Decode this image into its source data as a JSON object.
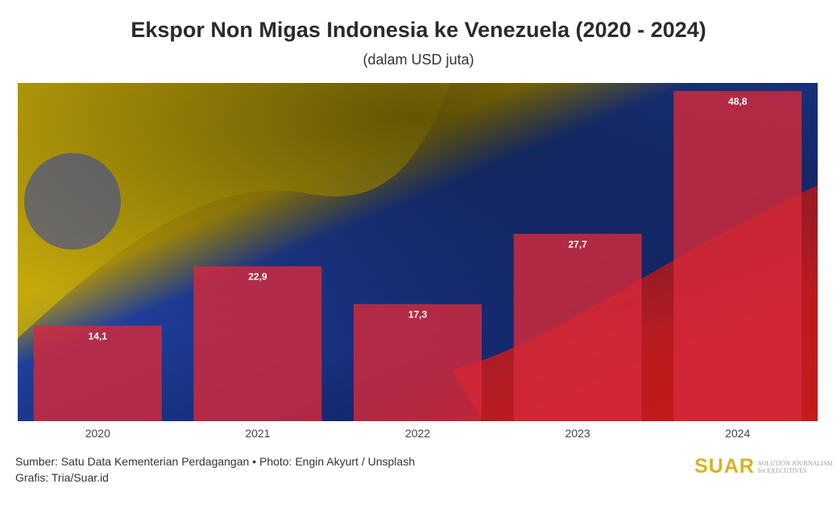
{
  "chart_data": {
    "type": "bar",
    "title": "Ekspor Non Migas Indonesia ke Venezuela (2020 - 2024)",
    "subtitle": "(dalam USD juta)",
    "categories": [
      "2020",
      "2021",
      "2022",
      "2023",
      "2024"
    ],
    "values": [
      14.1,
      22.9,
      17.3,
      27.7,
      48.8
    ],
    "value_labels": [
      "14,1",
      "22,9",
      "17,3",
      "27,7",
      "48,8"
    ],
    "xlabel": "",
    "ylabel": "",
    "ylim": [
      0,
      50
    ],
    "grid": false,
    "bar_color": "#d42a3a"
  },
  "footer": {
    "source": "Sumber: Satu Data Kementerian Perdagangan • Photo: Engin Akyurt / Unsplash",
    "credit": "Grafis: Tria/Suar.id"
  },
  "logo": {
    "word": "SUAR",
    "tagline1": "SOLUTION JOURNALISM",
    "tagline2": "for EXECUTIVES"
  }
}
